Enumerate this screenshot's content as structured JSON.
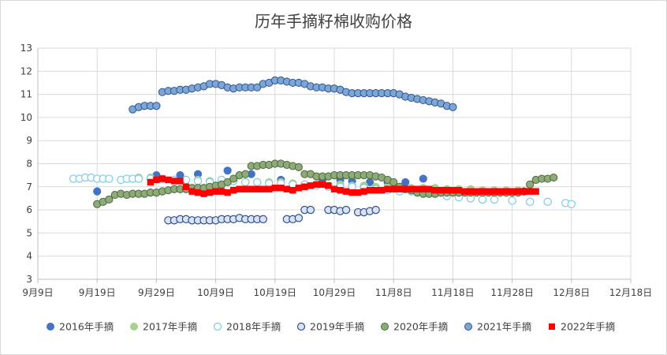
{
  "chart_data": {
    "type": "scatter",
    "title": "历年手摘籽棉收购价格",
    "xlabel": "",
    "ylabel": "",
    "ylim": [
      3,
      13
    ],
    "yticks": [
      3,
      4,
      5,
      6,
      7,
      8,
      9,
      10,
      11,
      12,
      13
    ],
    "xlim": [
      0,
      100
    ],
    "xticks": [
      {
        "label": "9月9日",
        "value": 0
      },
      {
        "label": "9月19日",
        "value": 10
      },
      {
        "label": "9月29日",
        "value": 20
      },
      {
        "label": "10月9日",
        "value": 30
      },
      {
        "label": "10月19日",
        "value": 40
      },
      {
        "label": "10月29日",
        "value": 50
      },
      {
        "label": "11月8日",
        "value": 60
      },
      {
        "label": "11月18日",
        "value": 70
      },
      {
        "label": "11月28日",
        "value": 80
      },
      {
        "label": "12月8日",
        "value": 90
      },
      {
        "label": "12月18日",
        "value": 100
      }
    ],
    "grid": true,
    "legend_position": "bottom",
    "series": [
      {
        "name": "2016年手摘",
        "color": "#4472c4",
        "marker": "circle-filled",
        "x": [
          10,
          20,
          24,
          27,
          32,
          36,
          41,
          48,
          51,
          53,
          56,
          59,
          62,
          65
        ],
        "y": [
          6.8,
          7.5,
          7.5,
          7.55,
          7.7,
          7.55,
          7.3,
          7.3,
          7.3,
          7.25,
          7.2,
          7.2,
          7.2,
          7.35
        ]
      },
      {
        "name": "2017年手摘",
        "color": "#a9d18e",
        "marker": "circle-filled",
        "x": [
          17,
          19,
          21,
          23,
          25,
          27,
          29,
          31,
          33,
          35,
          37,
          39,
          41,
          43,
          45,
          47,
          49,
          51,
          53,
          55,
          57,
          59,
          61,
          63,
          65,
          67,
          69,
          71,
          73,
          75,
          77,
          79,
          81
        ],
        "y": [
          7.4,
          7.4,
          7.35,
          7.3,
          7.3,
          7.3,
          7.25,
          7.2,
          7.25,
          7.2,
          7.2,
          7.2,
          7.2,
          7.15,
          7.1,
          7.05,
          7.05,
          7.1,
          7.05,
          7.05,
          7.0,
          7.0,
          7.0,
          6.95,
          6.95,
          6.95,
          6.9,
          6.9,
          6.9,
          6.85,
          6.85,
          6.85,
          6.85
        ]
      },
      {
        "name": "2018年手摘",
        "color": "#d4eef8",
        "marker": "circle-open",
        "x": [
          6,
          7,
          8,
          9,
          10,
          11,
          12,
          14,
          15,
          16,
          17,
          19,
          21,
          23,
          25,
          27,
          29,
          31,
          33,
          35,
          37,
          39,
          41,
          43,
          45,
          47,
          49,
          51,
          53,
          55,
          57,
          59,
          61,
          63,
          65,
          67,
          69,
          71,
          73,
          75,
          77,
          80,
          83,
          86,
          89,
          90
        ],
        "y": [
          7.35,
          7.35,
          7.4,
          7.4,
          7.35,
          7.35,
          7.35,
          7.3,
          7.35,
          7.35,
          7.35,
          7.35,
          7.35,
          7.3,
          7.3,
          7.25,
          7.2,
          7.3,
          7.25,
          7.2,
          7.2,
          7.15,
          7.15,
          7.1,
          7.1,
          7.05,
          7.0,
          7.0,
          7.0,
          6.95,
          6.9,
          6.85,
          6.8,
          6.8,
          6.75,
          6.7,
          6.6,
          6.55,
          6.5,
          6.45,
          6.45,
          6.4,
          6.35,
          6.35,
          6.3,
          6.25
        ]
      },
      {
        "name": "2019年手摘",
        "color": "#dae3f3",
        "marker": "circle-open-dark",
        "x": [
          22,
          23,
          24,
          25,
          26,
          27,
          28,
          29,
          30,
          31,
          32,
          33,
          34,
          35,
          36,
          37,
          38,
          42,
          43,
          44,
          45,
          46,
          49,
          50,
          51,
          52,
          54,
          55,
          56,
          57
        ],
        "y": [
          5.55,
          5.55,
          5.6,
          5.6,
          5.55,
          5.55,
          5.55,
          5.55,
          5.55,
          5.6,
          5.6,
          5.6,
          5.65,
          5.6,
          5.6,
          5.6,
          5.6,
          5.6,
          5.6,
          5.65,
          6.0,
          6.0,
          6.0,
          6.0,
          5.95,
          6.0,
          5.9,
          5.9,
          5.95,
          6.0
        ]
      },
      {
        "name": "2020年手摘",
        "color": "#8faa7a",
        "marker": "circle-filled-dark",
        "x": [
          10,
          11,
          12,
          13,
          14,
          15,
          16,
          17,
          18,
          19,
          20,
          21,
          22,
          23,
          24,
          25,
          26,
          27,
          28,
          29,
          30,
          31,
          32,
          33,
          34,
          35,
          36,
          37,
          38,
          39,
          40,
          41,
          42,
          43,
          44,
          45,
          46,
          47,
          48,
          49,
          50,
          51,
          52,
          53,
          54,
          55,
          56,
          57,
          58,
          59,
          60,
          61,
          62,
          63,
          64,
          65,
          66,
          67,
          68,
          69,
          70,
          71,
          72,
          73,
          74,
          75,
          76,
          77,
          78,
          79,
          80,
          81,
          82,
          83,
          84,
          85,
          86,
          87
        ],
        "y": [
          6.25,
          6.35,
          6.45,
          6.65,
          6.7,
          6.65,
          6.7,
          6.7,
          6.7,
          6.75,
          6.75,
          6.8,
          6.85,
          6.9,
          6.9,
          6.9,
          6.95,
          6.95,
          6.95,
          7.0,
          7.05,
          7.1,
          7.2,
          7.35,
          7.5,
          7.55,
          7.9,
          7.9,
          7.95,
          7.95,
          8.0,
          8.0,
          7.95,
          7.9,
          7.85,
          7.55,
          7.55,
          7.45,
          7.45,
          7.45,
          7.5,
          7.5,
          7.5,
          7.5,
          7.5,
          7.5,
          7.5,
          7.45,
          7.4,
          7.3,
          7.2,
          7.0,
          6.9,
          6.85,
          6.75,
          6.7,
          6.7,
          6.7,
          6.75,
          6.75,
          6.75,
          6.75,
          6.75,
          6.75,
          6.75,
          6.75,
          6.75,
          6.75,
          6.75,
          6.75,
          6.75,
          6.75,
          6.8,
          7.1,
          7.3,
          7.35,
          7.35,
          7.4
        ]
      },
      {
        "name": "2021年手摘",
        "color": "#7ea6d3",
        "marker": "circle-filled-dark",
        "x": [
          16,
          17,
          18,
          19,
          20,
          21,
          22,
          23,
          24,
          25,
          26,
          27,
          28,
          29,
          30,
          31,
          32,
          33,
          34,
          35,
          36,
          37,
          38,
          39,
          40,
          41,
          42,
          43,
          44,
          45,
          46,
          47,
          48,
          49,
          50,
          51,
          52,
          53,
          54,
          55,
          56,
          57,
          58,
          59,
          60,
          61,
          62,
          63,
          64,
          65,
          66,
          67,
          68,
          69,
          70
        ],
        "y": [
          10.35,
          10.45,
          10.5,
          10.5,
          10.5,
          11.1,
          11.15,
          11.15,
          11.2,
          11.2,
          11.25,
          11.3,
          11.35,
          11.45,
          11.45,
          11.4,
          11.3,
          11.25,
          11.3,
          11.3,
          11.3,
          11.3,
          11.45,
          11.5,
          11.6,
          11.6,
          11.55,
          11.5,
          11.5,
          11.45,
          11.35,
          11.3,
          11.3,
          11.25,
          11.25,
          11.2,
          11.1,
          11.05,
          11.05,
          11.05,
          11.05,
          11.05,
          11.05,
          11.05,
          11.05,
          11.0,
          10.9,
          10.85,
          10.8,
          10.75,
          10.7,
          10.65,
          10.6,
          10.5,
          10.45
        ]
      },
      {
        "name": "2022年手摘",
        "color": "#ff0000",
        "marker": "square",
        "x": [
          19,
          20,
          21,
          22,
          23,
          24,
          25,
          26,
          27,
          28,
          29,
          30,
          31,
          32,
          33,
          34,
          35,
          36,
          37,
          38,
          39,
          40,
          41,
          42,
          43,
          44,
          45,
          46,
          47,
          48,
          49,
          50,
          51,
          52,
          53,
          54,
          55,
          56,
          57,
          58,
          59,
          60,
          61,
          62,
          63,
          64,
          65,
          66,
          67,
          68,
          69,
          70,
          71,
          72,
          73,
          74,
          75,
          76,
          77,
          78,
          79,
          80,
          81,
          82,
          83,
          84
        ],
        "y": [
          7.2,
          7.3,
          7.35,
          7.3,
          7.25,
          7.25,
          7.0,
          6.8,
          6.75,
          6.7,
          6.75,
          6.8,
          6.8,
          6.75,
          6.85,
          6.9,
          6.9,
          6.9,
          6.9,
          6.9,
          6.9,
          6.95,
          6.95,
          6.9,
          6.85,
          6.95,
          7.0,
          7.05,
          7.1,
          7.1,
          7.05,
          6.9,
          6.85,
          6.8,
          6.75,
          6.75,
          6.8,
          6.85,
          6.85,
          6.85,
          6.9,
          6.9,
          6.9,
          6.9,
          6.9,
          6.9,
          6.9,
          6.9,
          6.85,
          6.85,
          6.85,
          6.85,
          6.85,
          6.8,
          6.8,
          6.8,
          6.8,
          6.8,
          6.8,
          6.8,
          6.8,
          6.8,
          6.8,
          6.8,
          6.8,
          6.8
        ]
      }
    ]
  }
}
